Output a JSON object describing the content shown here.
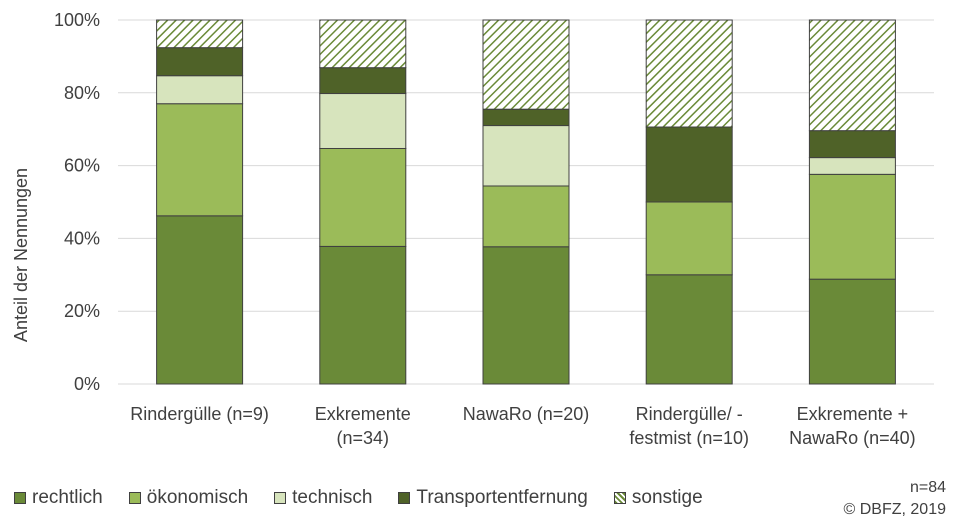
{
  "chart_data": {
    "type": "bar",
    "stacked": true,
    "ylabel": "Anteil der Nennungen",
    "xlabel": "",
    "ylim": [
      0,
      100
    ],
    "yticks": [
      "0%",
      "20%",
      "40%",
      "60%",
      "80%",
      "100%"
    ],
    "grid": true,
    "legend_position": "bottom",
    "categories": [
      [
        "Rindergülle (n=9)"
      ],
      [
        "Exkremente",
        "(n=34)"
      ],
      [
        "NawaRo (n=20)"
      ],
      [
        "Rindergülle/ -",
        "festmist (n=10)"
      ],
      [
        "Exkremente +",
        "NawaRo (n=40)"
      ]
    ],
    "series": [
      {
        "name": "rechtlich",
        "color": "#6a8a38",
        "pattern": false,
        "values": [
          46.2,
          37.8,
          37.7,
          30.0,
          28.8
        ]
      },
      {
        "name": "ökonomisch",
        "color": "#9bbb59",
        "pattern": false,
        "values": [
          30.8,
          26.9,
          16.7,
          20.0,
          28.8
        ]
      },
      {
        "name": "technisch",
        "color": "#d7e4bd",
        "pattern": false,
        "values": [
          7.7,
          15.1,
          16.6,
          0.0,
          4.6
        ]
      },
      {
        "name": "Transportentfernung",
        "color": "#4f6228",
        "pattern": false,
        "values": [
          7.7,
          7.1,
          4.5,
          20.6,
          7.4
        ]
      },
      {
        "name": "sonstige",
        "color": "#6a8a38",
        "pattern": true,
        "values": [
          7.6,
          13.1,
          24.5,
          29.4,
          30.4
        ]
      }
    ]
  },
  "notes": {
    "n_total": "n=84",
    "copyright": "© DBFZ, 2019"
  }
}
